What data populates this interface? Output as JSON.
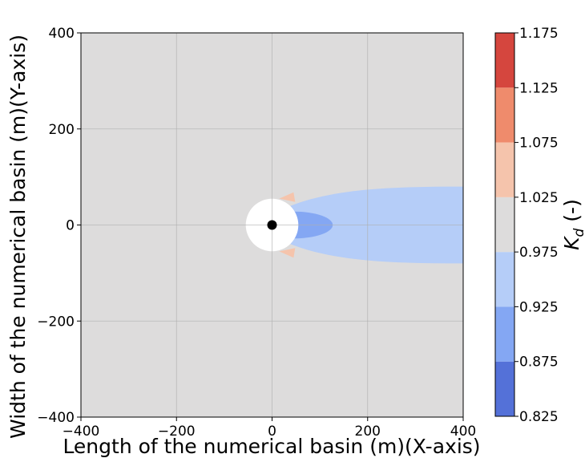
{
  "chart_data": {
    "type": "contour",
    "xlabel": "Length of the numerical basin (m)(X-axis)",
    "ylabel": "Width of the numerical basin (m)(Y-axis)",
    "xlim": [
      -400,
      400
    ],
    "ylim": [
      -400,
      400
    ],
    "xticks": [
      "−400",
      "−200",
      "0",
      "200",
      "400"
    ],
    "yticks": [
      "−400",
      "−200",
      "0",
      "200",
      "400"
    ],
    "grid": true,
    "background_level": "0.975–1.025",
    "structure": {
      "center": [
        0,
        0
      ],
      "radius": 55,
      "fill": "white",
      "marker": "black dot"
    },
    "regions": [
      {
        "level": "0.925–0.975",
        "color": "#b5cdf8",
        "shape": "downstream wake",
        "x_range": [
          20,
          400
        ],
        "half_width_max": 80
      },
      {
        "level": "0.875–0.925",
        "color": "#84a7f3",
        "shape": "ellipse",
        "center": [
          45,
          0
        ],
        "semi_axes": [
          82,
          28
        ]
      },
      {
        "level": "1.025–1.075",
        "color": "#f5c4ac",
        "shape": "lobes at structure sides",
        "x_range": [
          20,
          45
        ],
        "y_abs": [
          55,
          62
        ]
      }
    ],
    "colorbar": {
      "label": "K_d (-)",
      "label_main": "K",
      "label_sub": "d",
      "label_suffix": " (-)",
      "ticks": [
        "0.825",
        "0.875",
        "0.925",
        "0.975",
        "1.025",
        "1.075",
        "1.125",
        "1.175"
      ],
      "bands": [
        {
          "from": 0.825,
          "to": 0.875,
          "color": "#5471d8"
        },
        {
          "from": 0.875,
          "to": 0.925,
          "color": "#84a7f3"
        },
        {
          "from": 0.925,
          "to": 0.975,
          "color": "#b5cdf8"
        },
        {
          "from": 0.975,
          "to": 1.025,
          "color": "#dddcdc"
        },
        {
          "from": 1.025,
          "to": 1.075,
          "color": "#f5c4ac"
        },
        {
          "from": 1.075,
          "to": 1.125,
          "color": "#ef8b6c"
        },
        {
          "from": 1.125,
          "to": 1.175,
          "color": "#d5463e"
        }
      ]
    }
  }
}
